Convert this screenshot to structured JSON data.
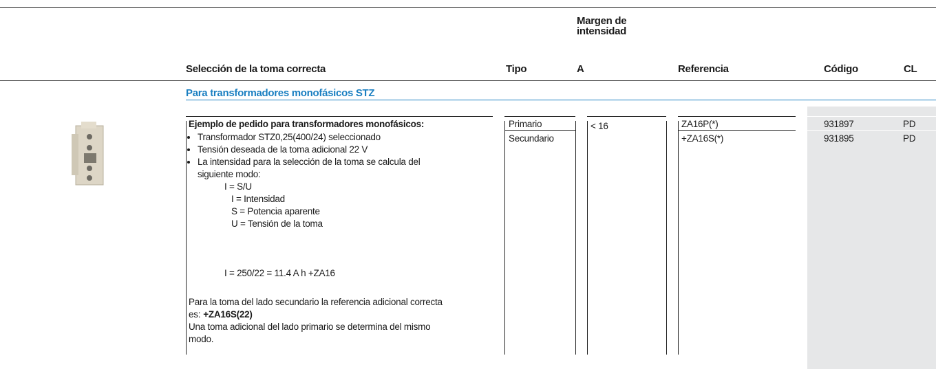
{
  "header": {
    "selection": "Selección de la toma correcta",
    "tipo": "Tipo",
    "margen": [
      "Margen de",
      "intensidad",
      "A"
    ],
    "referencia": "Referencia",
    "codigo": "Código",
    "cl": "CL"
  },
  "section_title": "Para transformadores monofásicos STZ",
  "example": {
    "title": "Ejemplo de pedido para transformadores monofásicos:",
    "bullets": [
      "Transformador STZ0,25(400/24) seleccionado",
      "Tensión deseada de la toma adicional 22 V",
      "La intensidad para la selección de la toma se calcula del"
    ],
    "continuation": "siguiente modo:",
    "formula": "I = S/U",
    "legend": [
      "I = Intensidad",
      "S = Potencia aparente",
      "U = Tensión de la toma"
    ],
    "calculation": "I = 250/22 = 11.4 A h +ZA16",
    "note_lead": "Para la toma del lado secundario la referencia adicional correcta",
    "note_prefix": "es:",
    "note_answer": "+ZA16S(22)",
    "note_end": [
      "Una toma adicional del lado primario se determina del mismo",
      "modo."
    ]
  },
  "rows": [
    {
      "tipo": "Primario",
      "margen": "< 16",
      "referencia": "ZA16P(*)",
      "codigo": "931897",
      "cl": "PD"
    },
    {
      "tipo": "Secundario",
      "referencia": "+ZA16S(*)",
      "codigo": "931895",
      "cl": "PD"
    }
  ]
}
